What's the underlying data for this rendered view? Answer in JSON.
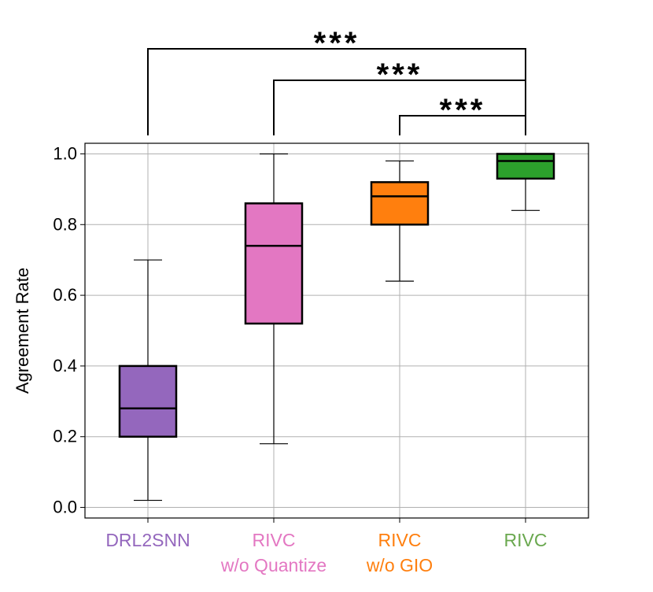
{
  "chart_data": {
    "type": "box",
    "ylabel": "Agreement Rate",
    "ylim": [
      -0.03,
      1.03
    ],
    "yticks": [
      0.0,
      0.2,
      0.4,
      0.6,
      0.8,
      1.0
    ],
    "ytick_labels": [
      "0.0",
      "0.2",
      "0.4",
      "0.6",
      "0.8",
      "1.0"
    ],
    "grid": true,
    "categories": [
      {
        "lines": [
          "DRL2SNN"
        ],
        "color": "#9467bd"
      },
      {
        "lines": [
          "RIVC",
          "w/o Quantize"
        ],
        "color": "#e377c2"
      },
      {
        "lines": [
          "RIVC",
          "w/o GIO"
        ],
        "color": "#ff7f0e"
      },
      {
        "lines": [
          "RIVC"
        ],
        "color": "#6aa84f"
      }
    ],
    "boxes": [
      {
        "whislo": 0.02,
        "q1": 0.2,
        "med": 0.28,
        "q3": 0.4,
        "whishi": 0.7,
        "color": "#9467bd"
      },
      {
        "whislo": 0.18,
        "q1": 0.52,
        "med": 0.74,
        "q3": 0.86,
        "whishi": 1.0,
        "color": "#e377c2"
      },
      {
        "whislo": 0.64,
        "q1": 0.8,
        "med": 0.88,
        "q3": 0.92,
        "whishi": 0.98,
        "color": "#ff7f0e"
      },
      {
        "whislo": 0.84,
        "q1": 0.93,
        "med": 0.98,
        "q3": 1.0,
        "whishi": 1.0,
        "color": "#2ca02c"
      }
    ],
    "significance": [
      {
        "from": 0,
        "to": 3,
        "label": "***"
      },
      {
        "from": 1,
        "to": 3,
        "label": "***"
      },
      {
        "from": 2,
        "to": 3,
        "label": "***"
      }
    ]
  }
}
